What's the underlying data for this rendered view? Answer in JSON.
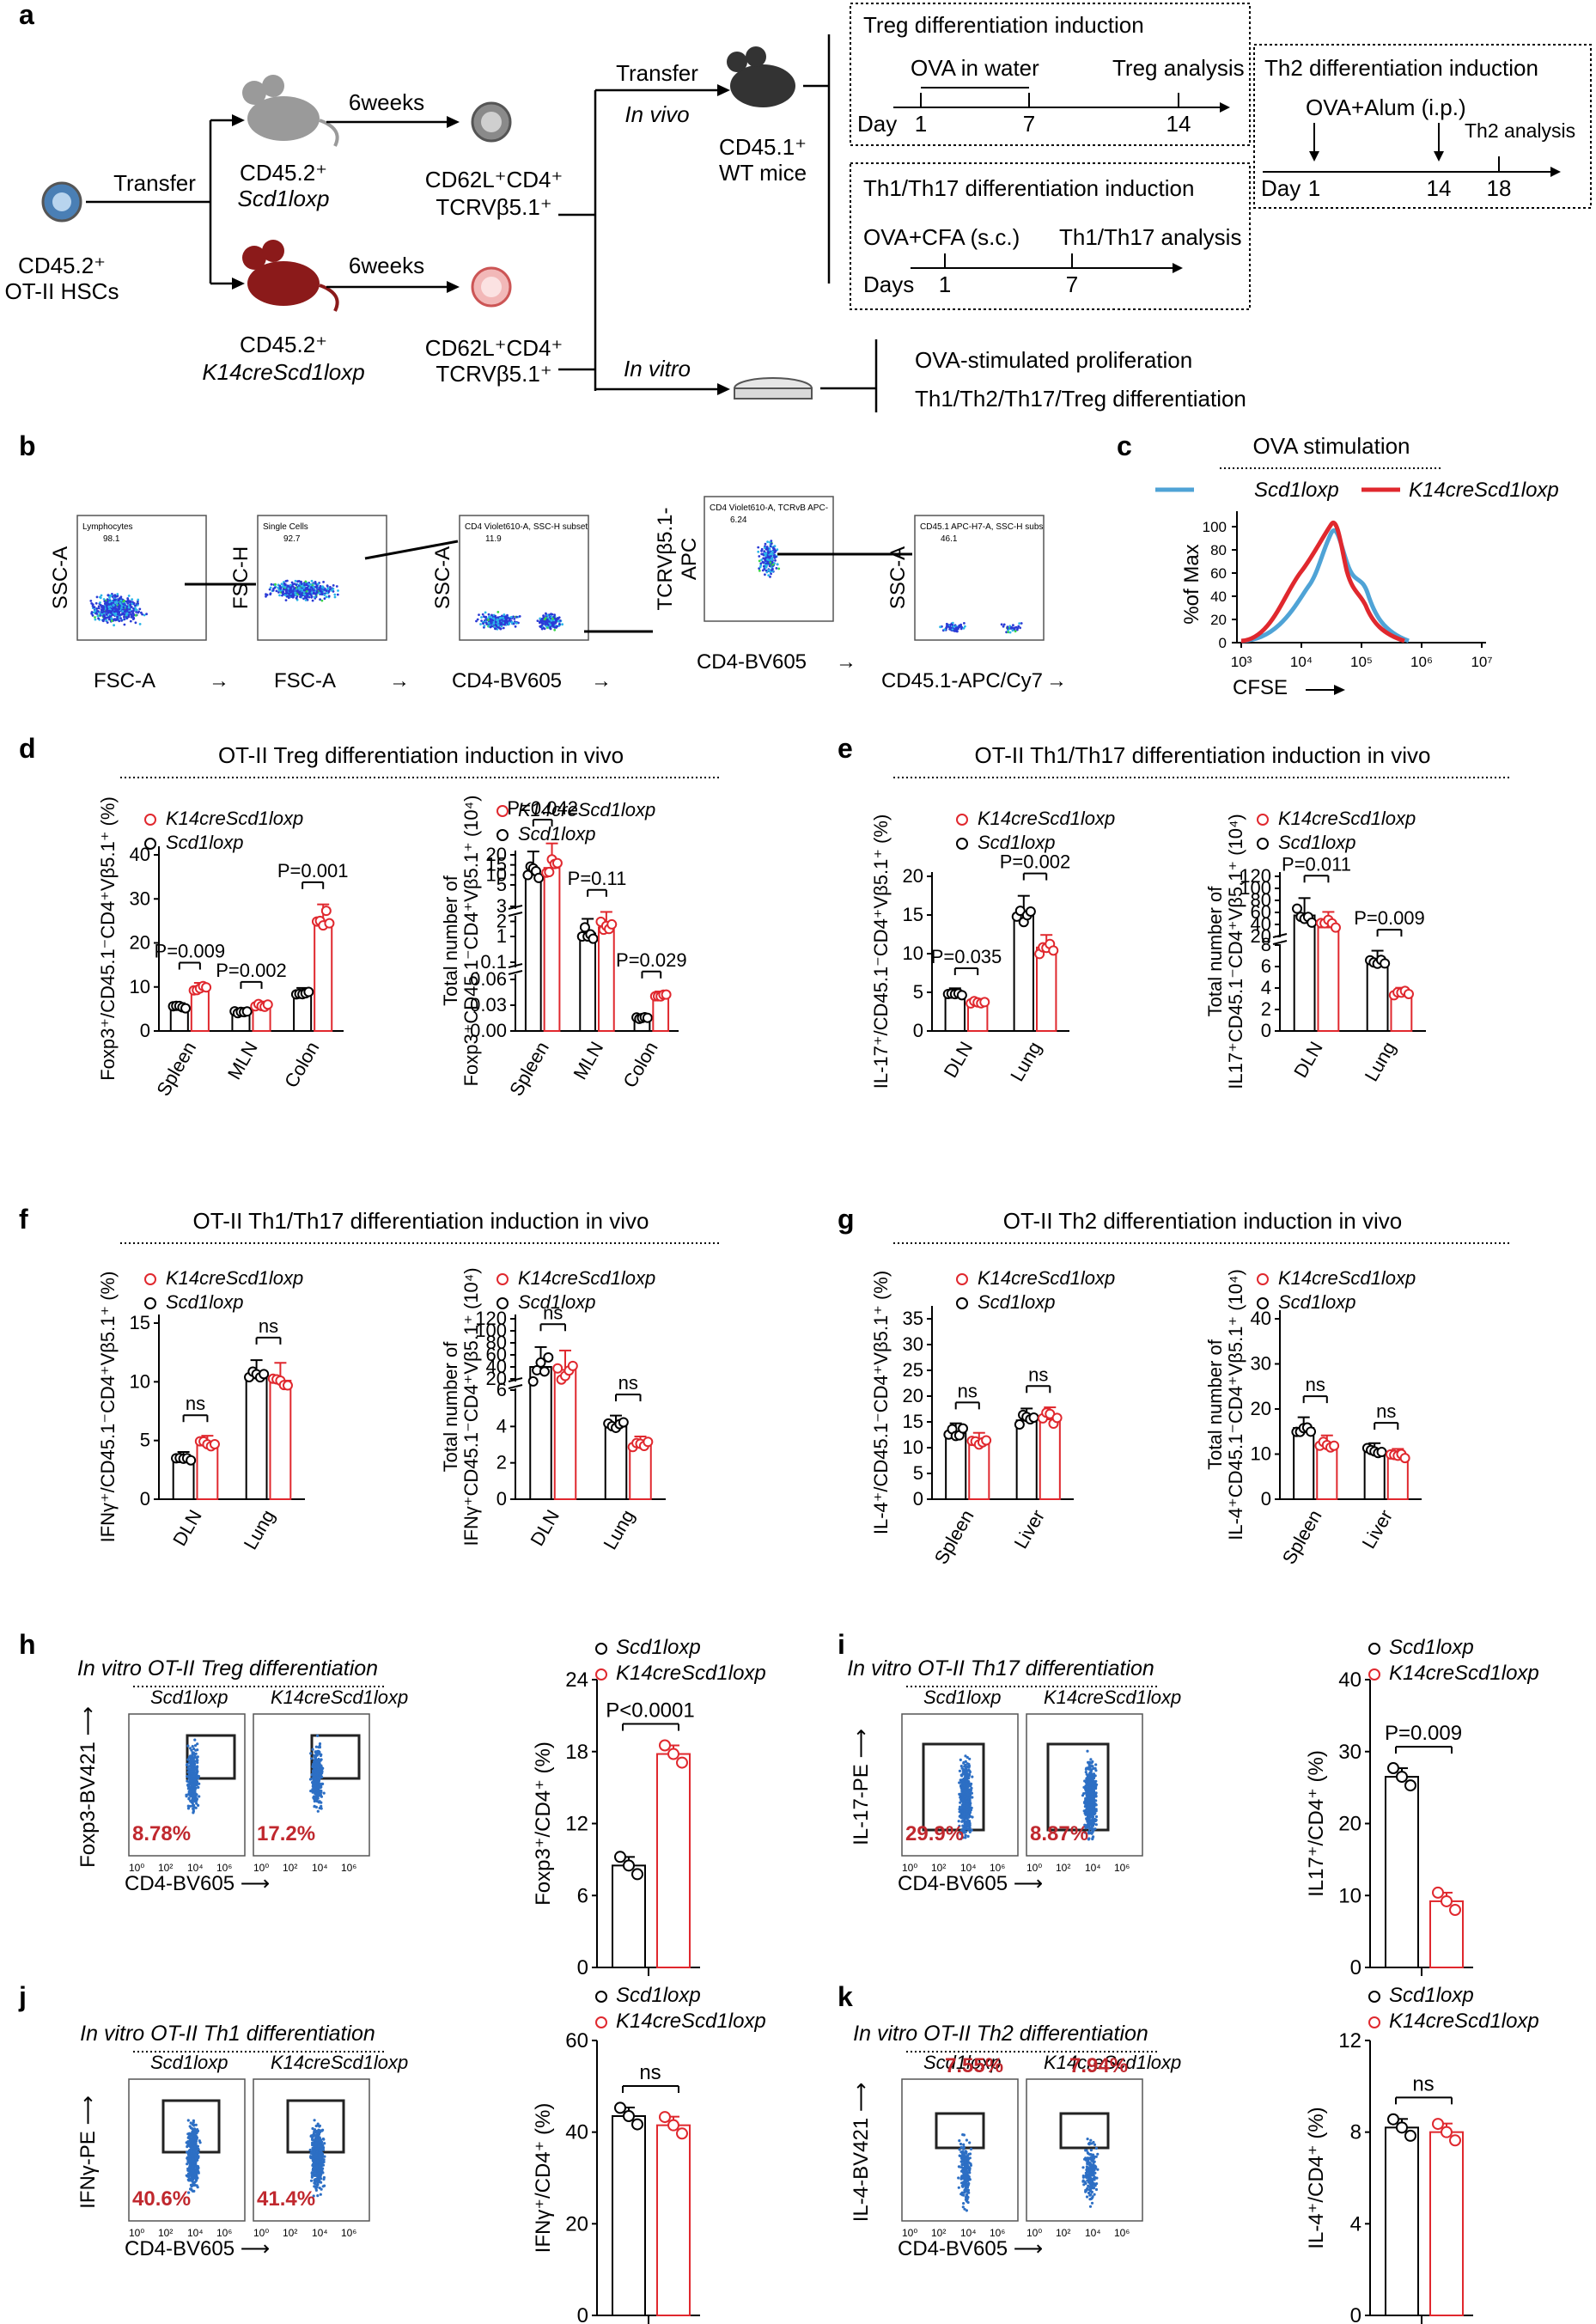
{
  "panel_letters": [
    "a",
    "b",
    "c",
    "d",
    "e",
    "f",
    "g",
    "h",
    "i",
    "j",
    "k"
  ],
  "a": {
    "hsc": [
      "CD45.2⁺",
      "OT-II HSCs"
    ],
    "transfer": "Transfer",
    "weeks": "6weeks",
    "donor_ctrl": [
      "CD45.2⁺",
      "Scd1loxp"
    ],
    "donor_ko": [
      "CD45.2⁺",
      "K14creScd1loxp"
    ],
    "cells": [
      "CD62L⁺CD4⁺",
      "TCRVβ5.1⁺"
    ],
    "in_vivo": "In vivo",
    "in_vitro": "In vitro",
    "recipient": [
      "CD45.1⁺",
      "WT mice"
    ],
    "treg_box": {
      "title": "Treg differentiation induction",
      "event1": "OVA in water",
      "event2": "Treg analysis",
      "axis": "Day",
      "ticks": [
        "1",
        "7",
        "14"
      ]
    },
    "th1_box": {
      "title": "Th1/Th17 differentiation induction",
      "event1": "OVA+CFA (s.c.)",
      "event2": "Th1/Th17 analysis",
      "axis": "Days",
      "ticks": [
        "1",
        "7"
      ]
    },
    "th2_box": {
      "title": "Th2 differentiation induction",
      "event1": "OVA+Alum (i.p.)",
      "event2": "Th2 analysis",
      "axis": "Day",
      "ticks": [
        "1",
        "14",
        "18"
      ]
    },
    "invitro_items": [
      "OVA-stimulated proliferation",
      "Th1/Th2/Th17/Treg differentiation"
    ]
  },
  "b": {
    "plots": [
      {
        "y": [
          "SSC-A"
        ],
        "x": "FSC-A",
        "gate": "Lymphocytes",
        "val": "98.1"
      },
      {
        "y": [
          "FSC-H"
        ],
        "x": "FSC-A",
        "gate": "Single Cells",
        "val": "92.7"
      },
      {
        "y": [
          "SSC-A"
        ],
        "x": "CD4-BV605",
        "gate": "CD4 Violet610-A, SSC-H subset",
        "val": "11.9"
      },
      {
        "y": [
          "TCRVβ5.1-",
          "APC"
        ],
        "x": "CD4-BV605",
        "gate": "CD4 Violet610-A, TCRvB APC-",
        "val": "6.24"
      },
      {
        "y": [
          "SSC-A"
        ],
        "x": "CD45.1-APC/Cy7",
        "gate": "CD45.1 APC-H7-A, SSC-H subs",
        "val": "46.1"
      }
    ]
  },
  "c": {
    "title": "OVA stimulation",
    "ylabel": "%of Max",
    "xlabel": "CFSE",
    "legend": [
      "Scd1loxp",
      "K14creScd1loxp"
    ],
    "yticks": [
      "0",
      "20",
      "40",
      "60",
      "80",
      "100"
    ],
    "xticks": [
      "10³",
      "10⁴",
      "10⁵",
      "10⁶",
      "10⁷"
    ]
  },
  "headers": {
    "d": "OT-II Treg differentiation induction in vivo",
    "e": "OT-II Th1/Th17 differentiation induction in vivo",
    "f": "OT-II Th1/Th17 differentiation induction in vivo",
    "g": "OT-II Th2 differentiation induction in vivo"
  },
  "legend_labels": {
    "ko": "K14creScd1loxp",
    "ctrl": "Scd1loxp"
  },
  "flow": {
    "h": {
      "title": "In vitro OT-II Treg differentiation",
      "y": "Foxp3-BV421",
      "x": "CD4-BV605",
      "pcts": [
        "8.78%",
        "17.2%"
      ]
    },
    "i": {
      "title": "In vitro OT-II Th17 differentiation",
      "y": "IL-17-PE",
      "x": "CD4-BV605",
      "pcts": [
        "29.9%",
        "8.87%"
      ]
    },
    "j": {
      "title": "In vitro OT-II Th1 differentiation",
      "y": "IFNγ-PE",
      "x": "CD4-BV605",
      "pcts": [
        "40.6%",
        "41.4%"
      ]
    },
    "k": {
      "title": "In vitro OT-II Th2 differentiation",
      "y": "IL-4-BV421",
      "x": "CD4-BV605",
      "pcts": [
        "7.55%",
        "7.94%"
      ]
    }
  },
  "chart_data": [
    {
      "id": "d1",
      "type": "bar",
      "ylabel": "Foxp3⁺/CD45.1⁻CD4⁺Vβ5.1⁺ (%)",
      "categories": [
        "Spleen",
        "MLN",
        "Colon"
      ],
      "series": [
        {
          "name": "Scd1loxp",
          "values": [
            5.5,
            4.2,
            8.5
          ]
        },
        {
          "name": "K14creScd1loxp",
          "values": [
            9.5,
            5.8,
            25
          ]
        }
      ],
      "yticks": [
        "0",
        "10",
        "20",
        "30",
        "40"
      ],
      "ylim": [
        0,
        40
      ],
      "pvalues": [
        "P=0.009",
        "P=0.002",
        "P=0.001"
      ]
    },
    {
      "id": "d2",
      "type": "bar",
      "ylabel": "Total number of Foxp3⁺CD45.1⁻CD4⁺Vβ5.1⁺ (10⁴)",
      "categories": [
        "Spleen",
        "MLN",
        "Colon"
      ],
      "series": [
        {
          "name": "Scd1loxp",
          "values": [
            10,
            1.2,
            0.015
          ]
        },
        {
          "name": "K14creScd1loxp",
          "values": [
            13.5,
            1.6,
            0.04
          ]
        }
      ],
      "yticks": [
        "0.00",
        "0.03",
        "0.06",
        "0.1",
        "1",
        "2",
        "3",
        "5",
        "10",
        "15",
        "20"
      ],
      "pvalues": [
        "P=0.042",
        "P=0.11",
        "P=0.029"
      ]
    },
    {
      "id": "e1",
      "type": "bar",
      "ylabel": "IL-17⁺/CD45.1⁻CD4⁺Vβ5.1⁺ (%)",
      "categories": [
        "DLN",
        "Lung"
      ],
      "series": [
        {
          "name": "Scd1loxp",
          "values": [
            4.8,
            15.2
          ]
        },
        {
          "name": "K14creScd1loxp",
          "values": [
            3.6,
            10.8
          ]
        }
      ],
      "yticks": [
        "0",
        "5",
        "10",
        "15",
        "20"
      ],
      "ylim": [
        0,
        20
      ],
      "pvalues": [
        "P=0.035",
        "P=0.002"
      ]
    },
    {
      "id": "e2",
      "type": "bar",
      "ylabel": "Total number of IL17⁺CD45.1⁻CD4⁺Vβ5.1⁺ (10⁴)",
      "categories": [
        "DLN",
        "Lung"
      ],
      "series": [
        {
          "name": "Scd1loxp",
          "values": [
            55,
            6.5
          ]
        },
        {
          "name": "K14creScd1loxp",
          "values": [
            35,
            3.5
          ]
        }
      ],
      "yticks": [
        "0",
        "2",
        "4",
        "6",
        "8",
        "20",
        "40",
        "60",
        "80",
        "100",
        "120"
      ],
      "pvalues": [
        "P=0.011",
        "P=0.009"
      ]
    },
    {
      "id": "f1",
      "type": "bar",
      "ylabel": "IFNγ⁺/CD45.1⁻CD4⁺Vβ5.1⁺ (%)",
      "categories": [
        "DLN",
        "Lung"
      ],
      "series": [
        {
          "name": "Scd1loxp",
          "values": [
            3.5,
            10.3
          ]
        },
        {
          "name": "K14creScd1loxp",
          "values": [
            4.7,
            10.1
          ]
        }
      ],
      "yticks": [
        "0",
        "5",
        "10",
        "15"
      ],
      "ylim": [
        0,
        15
      ],
      "pvalues": [
        "ns",
        "ns"
      ]
    },
    {
      "id": "f2",
      "type": "bar",
      "ylabel": "Total number of IFNγ⁺CD45.1⁻CD4⁺Vβ5.1⁺ (10⁴)",
      "categories": [
        "DLN",
        "Lung"
      ],
      "series": [
        {
          "name": "Scd1loxp",
          "values": [
            40,
            4
          ]
        },
        {
          "name": "K14creScd1loxp",
          "values": [
            35,
            3
          ]
        }
      ],
      "yticks": [
        "0",
        "2",
        "4",
        "6",
        "20",
        "40",
        "60",
        "80",
        "100",
        "120"
      ],
      "pvalues": [
        "ns",
        "ns"
      ]
    },
    {
      "id": "g1",
      "type": "bar",
      "ylabel": "IL-4⁺/CD45.1⁻CD4⁺Vβ5.1⁺ (%)",
      "categories": [
        "Spleen",
        "Liver"
      ],
      "series": [
        {
          "name": "Scd1loxp",
          "values": [
            12.8,
            15.3
          ]
        },
        {
          "name": "K14creScd1loxp",
          "values": [
            11.2,
            15.5
          ]
        }
      ],
      "yticks": [
        "0",
        "5",
        "10",
        "15",
        "20",
        "25",
        "30",
        "35"
      ],
      "ylim": [
        0,
        35
      ],
      "pvalues": [
        "ns",
        "ns"
      ]
    },
    {
      "id": "g2",
      "type": "bar",
      "ylabel": "Total number of IL-4⁺CD45.1⁻CD4⁺Vβ5.1⁺ (10⁴)",
      "categories": [
        "Spleen",
        "Liver"
      ],
      "series": [
        {
          "name": "Scd1loxp",
          "values": [
            15.8,
            10.8
          ]
        },
        {
          "name": "K14creScd1loxp",
          "values": [
            12.3,
            9.7
          ]
        }
      ],
      "yticks": [
        "0",
        "10",
        "20",
        "30",
        "40"
      ],
      "ylim": [
        0,
        40
      ],
      "pvalues": [
        "ns",
        "ns"
      ]
    },
    {
      "id": "h",
      "type": "bar",
      "ylabel": "Foxp3⁺/CD4⁺ (%)",
      "categories": [
        "Scd1loxp",
        "K14creScd1loxp"
      ],
      "values": [
        8.5,
        17.8
      ],
      "yticks": [
        "0",
        "6",
        "12",
        "18",
        "24"
      ],
      "ylim": [
        0,
        24
      ],
      "pvalues": [
        "P<0.0001"
      ]
    },
    {
      "id": "i",
      "type": "bar",
      "ylabel": "IL17⁺/CD4⁺ (%)",
      "categories": [
        "Scd1loxp",
        "K14creScd1loxp"
      ],
      "values": [
        26.5,
        9.2
      ],
      "yticks": [
        "0",
        "10",
        "20",
        "30",
        "40"
      ],
      "ylim": [
        0,
        40
      ],
      "pvalues": [
        "P=0.009"
      ]
    },
    {
      "id": "j",
      "type": "bar",
      "ylabel": "IFNγ⁺/CD4⁺ (%)",
      "categories": [
        "Scd1loxp",
        "K14creScd1loxp"
      ],
      "values": [
        43.5,
        41.5
      ],
      "yticks": [
        "0",
        "20",
        "40",
        "60"
      ],
      "ylim": [
        0,
        60
      ],
      "pvalues": [
        "ns"
      ]
    },
    {
      "id": "k",
      "type": "bar",
      "ylabel": "IL-4⁺/CD4⁺ (%)",
      "categories": [
        "Scd1loxp",
        "K14creScd1loxp"
      ],
      "values": [
        8.2,
        8.0
      ],
      "yticks": [
        "0",
        "4",
        "8",
        "12"
      ],
      "ylim": [
        0,
        12
      ],
      "pvalues": [
        "ns"
      ]
    }
  ]
}
